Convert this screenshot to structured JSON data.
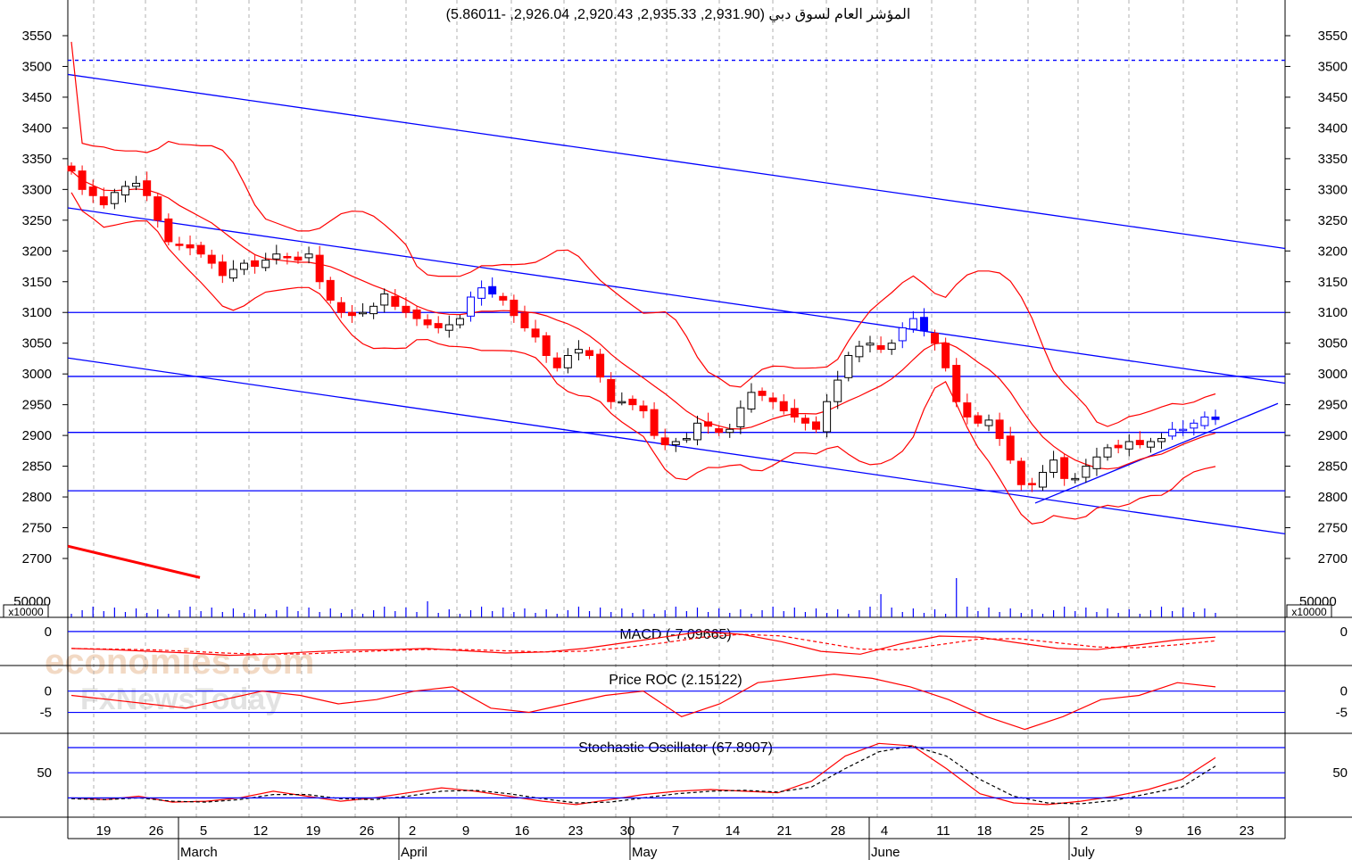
{
  "colors": {
    "up_candle": "#ffffff",
    "down_candle": "#ff0000",
    "blue_candle": "#0000ff",
    "bands": "#ff0000",
    "trendlines": "#0000ff",
    "grid": "#b0b0b0",
    "stoch_signal": "#000000",
    "watermark_primary": "#f2d9c4",
    "watermark_secondary": "#e2e2e2"
  },
  "watermark": {
    "primary": "economies.com",
    "secondary": "FxNewsToday"
  },
  "volume_label": "x10000",
  "chart_data": [
    {
      "type": "candlestick",
      "title": "المؤشر العام لسوق دبي (2,931.90, 2,935.33, 2,920.43, 2,926.04, -5.86011)",
      "ylim": [
        2650,
        3590
      ],
      "yticks": [
        2700,
        2750,
        2800,
        2850,
        2900,
        2950,
        3000,
        3050,
        3100,
        3150,
        3200,
        3250,
        3300,
        3350,
        3400,
        3450,
        3500,
        3550
      ],
      "grid": true,
      "x_day_labels": [
        "19",
        "26",
        "5",
        "12",
        "19",
        "26",
        "2",
        "9",
        "16",
        "23",
        "30",
        "7",
        "14",
        "21",
        "28",
        "4",
        "11",
        "18",
        "25",
        "2",
        "9",
        "16",
        "23"
      ],
      "x_month_labels": [
        "March",
        "April",
        "May",
        "June",
        "July"
      ],
      "horizontal_levels": [
        3100,
        2996,
        2905,
        2810
      ],
      "dashed_level": 3510,
      "candles_close": [
        3330,
        3300,
        3290,
        3275,
        3295,
        3305,
        3310,
        3290,
        3250,
        3215,
        3210,
        3205,
        3195,
        3180,
        3160,
        3170,
        3180,
        3175,
        3185,
        3195,
        3190,
        3185,
        3195,
        3150,
        3120,
        3100,
        3095,
        3100,
        3110,
        3130,
        3110,
        3100,
        3090,
        3080,
        3075,
        3080,
        3090,
        3125,
        3140,
        3130,
        3120,
        3095,
        3075,
        3060,
        3030,
        3010,
        3030,
        3040,
        3030,
        2995,
        2955,
        2955,
        2950,
        2940,
        2900,
        2885,
        2890,
        2895,
        2920,
        2915,
        2905,
        2910,
        2945,
        2970,
        2965,
        2955,
        2940,
        2930,
        2920,
        2910,
        2955,
        2990,
        3030,
        3045,
        3050,
        3040,
        3050,
        3075,
        3090,
        3070,
        3050,
        3010,
        2955,
        2930,
        2920,
        2925,
        2895,
        2860,
        2820,
        2820,
        2840,
        2860,
        2830,
        2830,
        2850,
        2865,
        2880,
        2880,
        2890,
        2885,
        2890,
        2895,
        2910,
        2910,
        2920,
        2930,
        2926
      ],
      "bands_upper_start": 3540,
      "bands_lower_end": 2810,
      "volume_ytick": 50000
    },
    {
      "type": "line",
      "title": "MACD (-7.09665)",
      "yticks": [
        0
      ],
      "series": [
        {
          "values": [
            -30,
            -32,
            -35,
            -38,
            -42,
            -40,
            -36,
            -33,
            -32,
            -30,
            -34,
            -38,
            -36,
            -30,
            -20,
            -10,
            0,
            -5,
            -18,
            -35,
            -40,
            -22,
            -8,
            -10,
            -20,
            -30,
            -32,
            -24,
            -15,
            -10
          ]
        }
      ]
    },
    {
      "type": "line",
      "title": "Price ROC (2.15122)",
      "yticks": [
        0,
        -5
      ],
      "series": [
        {
          "values": [
            -1,
            -2,
            -3,
            -4,
            -2,
            0,
            -1,
            -3,
            -2,
            0,
            1,
            -4,
            -5,
            -3,
            -1,
            0,
            -6,
            -3,
            2,
            3,
            4,
            3,
            1,
            -2,
            -6,
            -9,
            -6,
            -2,
            -1,
            2,
            1
          ]
        }
      ]
    },
    {
      "type": "line",
      "title": "Stochastic Oscillator (67.8907)",
      "yticks": [
        50
      ],
      "series": [
        {
          "values": [
            20,
            18,
            22,
            15,
            16,
            20,
            28,
            22,
            16,
            20,
            26,
            32,
            28,
            22,
            16,
            12,
            18,
            24,
            28,
            30,
            28,
            26,
            40,
            70,
            85,
            82,
            55,
            25,
            14,
            12,
            16,
            22,
            30,
            42,
            68
          ]
        },
        {
          "values": [
            19,
            18,
            20,
            16,
            15,
            18,
            24,
            24,
            19,
            18,
            22,
            28,
            29,
            25,
            19,
            14,
            15,
            20,
            25,
            28,
            29,
            27,
            33,
            55,
            75,
            82,
            70,
            42,
            22,
            14,
            13,
            17,
            25,
            33,
            58
          ]
        }
      ]
    }
  ]
}
